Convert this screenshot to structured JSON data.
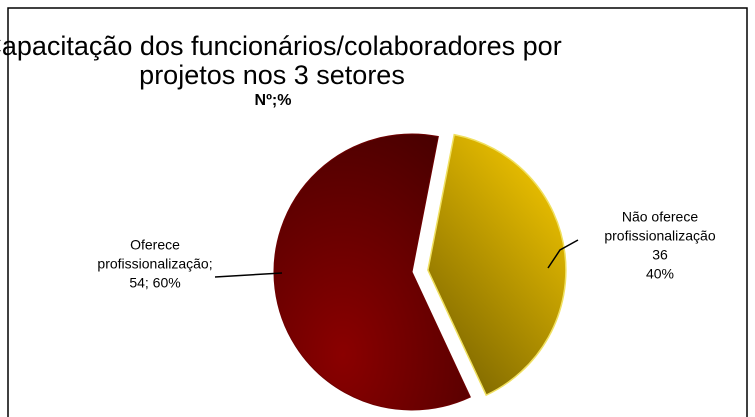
{
  "chart_data": {
    "type": "pie",
    "title": [
      "Capacitação dos funcionários/colaboradores por",
      "projetos nos 3 setores"
    ],
    "subtitle": "Nº;%",
    "values": [
      54,
      36
    ],
    "labels": [
      [
        "Oferece",
        "profissionalização;",
        "54; 60%"
      ],
      [
        "Não oferece",
        "profissionalização",
        "36",
        "40%"
      ]
    ],
    "colors": [
      "#6e0000",
      "#d4a800"
    ],
    "exploded": [
      false,
      true
    ]
  }
}
